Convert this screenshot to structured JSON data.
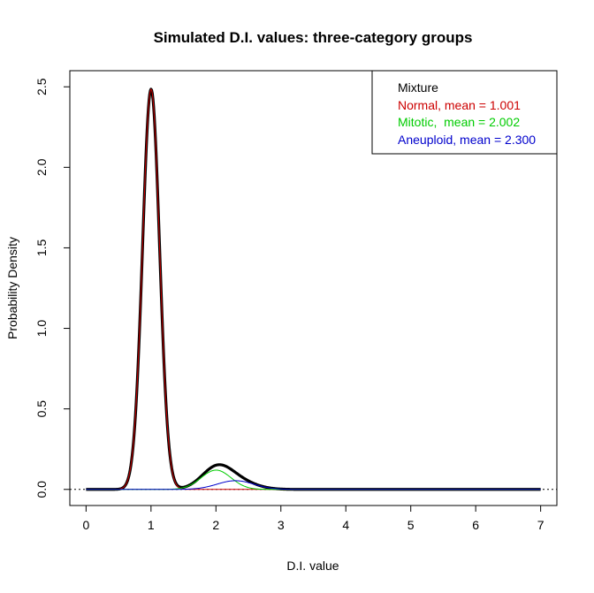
{
  "chart_data": {
    "type": "line",
    "title": "Simulated D.I. values: three-category groups",
    "xlabel": "D.I. value",
    "ylabel": "Probability Density",
    "xlim": [
      -0.25,
      7.25
    ],
    "ylim": [
      -0.1,
      2.6
    ],
    "x_ticks": [
      0,
      1,
      2,
      3,
      4,
      5,
      6,
      7
    ],
    "y_ticks": [
      0.0,
      0.5,
      1.0,
      1.5,
      2.0,
      2.5
    ],
    "x_tick_labels": [
      "0",
      "1",
      "2",
      "3",
      "4",
      "5",
      "6",
      "7"
    ],
    "y_tick_labels": [
      "0.0",
      "0.5",
      "1.0",
      "1.5",
      "2.0",
      "2.5"
    ],
    "grid": false,
    "legend_position": "top-right",
    "baseline_y": 0,
    "x_range": [
      0,
      7
    ],
    "series": [
      {
        "name": "Mixture",
        "color": "#000000",
        "weight": 0.816,
        "mean": 1.001,
        "sd": 0.131
      },
      {
        "name": "Normal, mean = 1.001",
        "color": "#cc0000",
        "weight": 0.816,
        "mean": 1.001,
        "sd": 0.131
      },
      {
        "name": "Mitotic,  mean = 2.002",
        "color": "#00cc00",
        "weight": 0.069,
        "mean": 2.002,
        "sd": 0.23
      },
      {
        "name": "Aneuploid, mean = 2.300",
        "color": "#0000cc",
        "weight": 0.038,
        "mean": 2.3,
        "sd": 0.28
      }
    ]
  }
}
